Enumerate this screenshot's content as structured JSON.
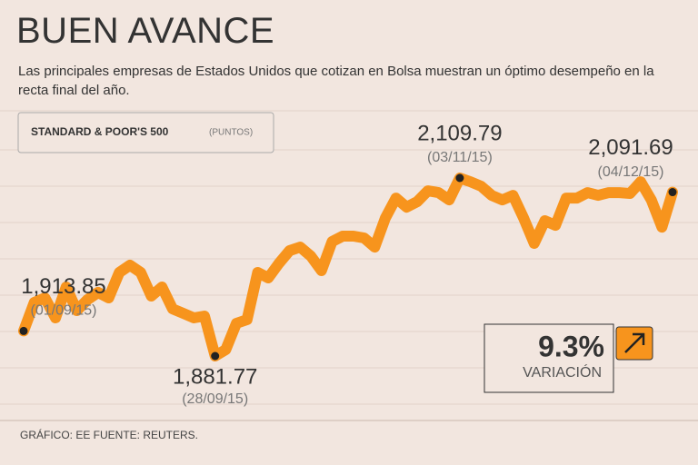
{
  "chart_data": {
    "type": "line",
    "title": "BUEN AVANCE",
    "subtitle": "Las principales empresas de Estados Unidos que cotizan en Bolsa muestran un óptimo desempeño en la recta final del año.",
    "series_label": "STANDARD & POOR'S 500",
    "unit_label": "(PUNTOS)",
    "variation": "9.3%",
    "variation_label": "VARIACIÓN",
    "source": "GRÁFICO: EE  FUENTE: REUTERS.",
    "color": "#f7941d",
    "categories": [
      "(01/09/15)",
      null,
      null,
      null,
      null,
      null,
      null,
      null,
      null,
      null,
      null,
      null,
      null,
      null,
      null,
      null,
      null,
      null,
      "(28/09/15)",
      null,
      null,
      null,
      null,
      null,
      null,
      null,
      null,
      null,
      null,
      null,
      null,
      null,
      null,
      null,
      null,
      null,
      null,
      null,
      null,
      null,
      null,
      "(03/11/15)",
      null,
      null,
      null,
      null,
      null,
      null,
      null,
      null,
      null,
      null,
      null,
      null,
      null,
      null,
      null,
      null,
      null,
      null,
      null,
      "(04/12/15)"
    ],
    "values": [
      1913.85,
      1950.4,
      1956.2,
      1930.6,
      1970.2,
      1939.9,
      1953.9,
      1963.2,
      1956.2,
      1988.8,
      1998.1,
      1988.8,
      1958.5,
      1970.2,
      1942.2,
      1936.4,
      1930.6,
      1932.9,
      1881.77,
      1889.9,
      1923.6,
      1928.3,
      1988.8,
      1981.8,
      2000.4,
      2016.7,
      2021.3,
      2009.7,
      1991.1,
      2028.3,
      2035.3,
      2035.3,
      2033.0,
      2021.3,
      2058.5,
      2084.1,
      2072.5,
      2079.5,
      2093.4,
      2091.1,
      2081.8,
      2109.79,
      2105.0,
      2099.3,
      2087.6,
      2081.8,
      2087.6,
      2058.5,
      2026.0,
      2055.1,
      2049.2,
      2084.1,
      2084.1,
      2091.1,
      2087.6,
      2091.1,
      2091.1,
      2090.0,
      2105.0,
      2081.8,
      2046.9,
      2091.69
    ],
    "value_labels": [
      "1,913.85",
      null,
      null,
      null,
      null,
      null,
      null,
      null,
      null,
      null,
      null,
      null,
      null,
      null,
      null,
      null,
      null,
      null,
      "1,881.77",
      null,
      null,
      null,
      null,
      null,
      null,
      null,
      null,
      null,
      null,
      null,
      null,
      null,
      null,
      null,
      null,
      null,
      null,
      null,
      null,
      null,
      null,
      "2,109.79",
      null,
      null,
      null,
      null,
      null,
      null,
      null,
      null,
      null,
      null,
      null,
      null,
      null,
      null,
      null,
      null,
      null,
      null,
      null,
      "2,091.69"
    ]
  }
}
